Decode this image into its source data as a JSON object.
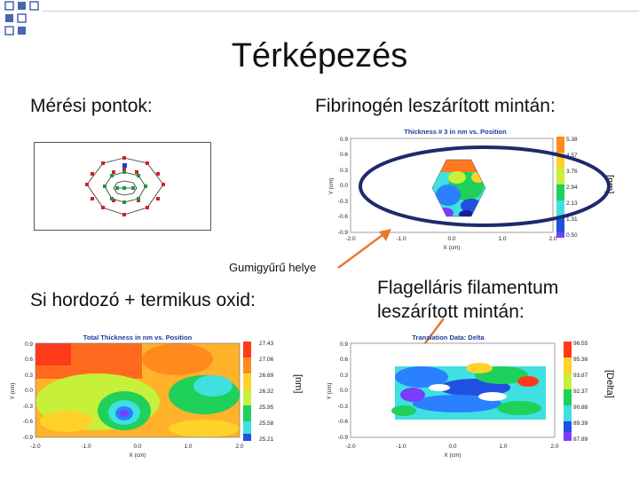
{
  "slide": {
    "title": "Térképezés",
    "meresi_pontok": "Mérési pontok:",
    "fibrinogen": "Fibrinogén leszárított mintán:",
    "gumigyuru": "Gumigyűrű helye",
    "si_hordozo": "Si hordozó + termikus oxid:",
    "flagellaris_line1": "Flagelláris filamentum",
    "flagellaris_line2": "leszárított mintán:"
  },
  "unit_labels": {
    "nm": "[nm]",
    "delta": "[Delta]"
  },
  "plots": {
    "fibrinogen": {
      "title": "Thickness # 3 in nm vs. Position",
      "y_ticks": [
        "0.9",
        "0.6",
        "0.3",
        "0.0",
        "-0.3",
        "-0.6",
        "-0.9"
      ],
      "x_ticks": [
        "-2.0",
        "-1.0",
        "0.0",
        "1.0",
        "2.0"
      ],
      "ylabel": "Y (cm)",
      "xlabel": "X (cm)",
      "scale": [
        "5.38",
        "4.57",
        "3.76",
        "2.94",
        "2.13",
        "1.31",
        "0.50"
      ]
    },
    "si": {
      "title": "Total Thickness in nm vs. Position",
      "y_ticks": [
        "0.9",
        "0.6",
        "0.3",
        "0.0",
        "-0.3",
        "-0.6",
        "-0.9"
      ],
      "x_ticks": [
        "-2.0",
        "-1.0",
        "0.0",
        "1.0",
        "2.0"
      ],
      "ylabel": "Y (cm)",
      "xlabel": "X (cm)",
      "scale": [
        "27.43",
        "27.06",
        "26.69",
        "26.32",
        "25.95",
        "25.58",
        "25.21"
      ]
    },
    "flag": {
      "title": "Translation Data: Delta",
      "y_ticks": [
        "0.9",
        "0.6",
        "0.3",
        "0.0",
        "-0.3",
        "-0.6",
        "-0.9"
      ],
      "x_ticks": [
        "-2.0",
        "-1.0",
        "0.0",
        "1.0",
        "2.0"
      ],
      "ylabel": "Y (cm)",
      "xlabel": "X (cm)",
      "scale": [
        "96.55",
        "95.36",
        "93.87",
        "92.37",
        "90.88",
        "89.39",
        "87.89"
      ]
    }
  },
  "colors": {
    "accent_orange": "#e8782a",
    "ellipse": "#1f2a6b",
    "bullet": "#4a66b0"
  }
}
